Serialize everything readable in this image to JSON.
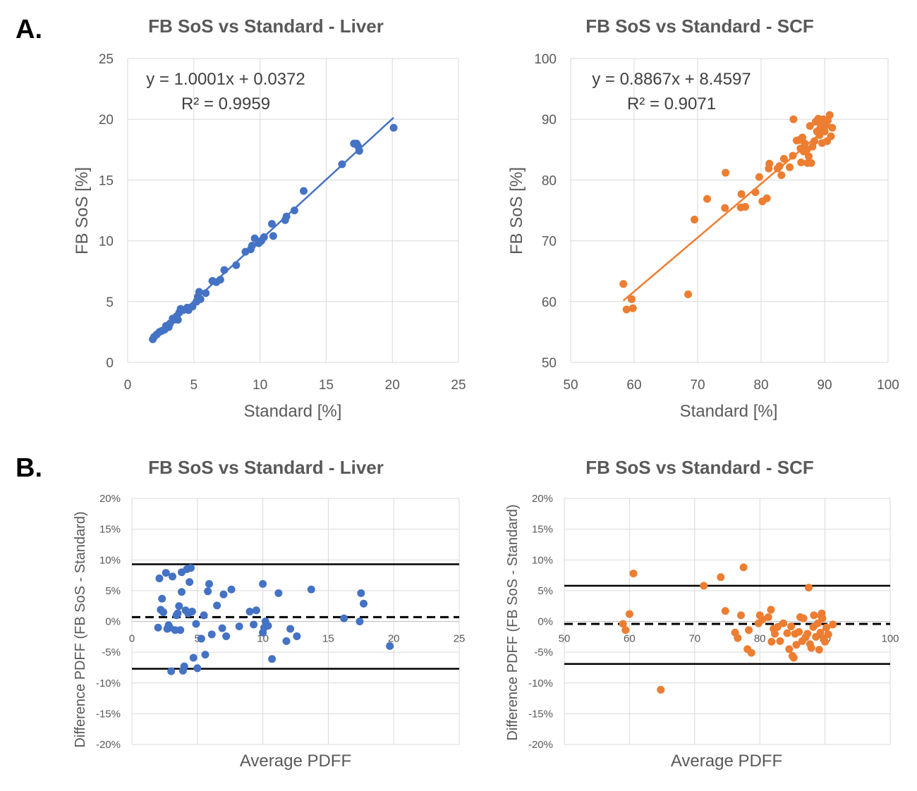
{
  "labels": {
    "panel_a": "A.",
    "panel_b": "B."
  },
  "chart_data": [
    {
      "id": "a-liver",
      "type": "scatter",
      "title": "FB SoS vs Standard - Liver",
      "xlabel": "Standard [%]",
      "ylabel": "FB SoS [%]",
      "xlim": [
        0,
        25
      ],
      "ylim": [
        0,
        25
      ],
      "xticks": [
        "0",
        "5",
        "10",
        "15",
        "20",
        "25"
      ],
      "yticks": [
        "0",
        "5",
        "10",
        "15",
        "20",
        "25"
      ],
      "color": "#4472c4",
      "equation": "y = 1.0001x + 0.0372",
      "r2": "R² = 0.9959",
      "trendline": {
        "x": [
          1.9,
          20.1
        ],
        "slope": 1.0001,
        "intercept": 0.0372
      },
      "points": [
        [
          1.9,
          1.9
        ],
        [
          2.0,
          2.1
        ],
        [
          2.2,
          2.3
        ],
        [
          2.4,
          2.5
        ],
        [
          2.6,
          2.6
        ],
        [
          2.8,
          2.7
        ],
        [
          2.9,
          3.0
        ],
        [
          3.1,
          2.9
        ],
        [
          3.2,
          3.2
        ],
        [
          3.4,
          3.6
        ],
        [
          3.5,
          3.5
        ],
        [
          3.7,
          3.8
        ],
        [
          3.8,
          3.5
        ],
        [
          3.9,
          4.1
        ],
        [
          4.0,
          4.4
        ],
        [
          4.2,
          4.3
        ],
        [
          4.5,
          4.5
        ],
        [
          4.6,
          4.3
        ],
        [
          4.9,
          4.6
        ],
        [
          5.2,
          5.0
        ],
        [
          5.3,
          5.4
        ],
        [
          5.4,
          5.8
        ],
        [
          5.5,
          5.2
        ],
        [
          5.9,
          5.7
        ],
        [
          6.4,
          6.7
        ],
        [
          6.7,
          6.6
        ],
        [
          7.0,
          6.8
        ],
        [
          7.3,
          7.6
        ],
        [
          8.2,
          8.0
        ],
        [
          8.9,
          9.1
        ],
        [
          9.3,
          9.3
        ],
        [
          9.4,
          9.6
        ],
        [
          9.6,
          10.2
        ],
        [
          9.9,
          9.8
        ],
        [
          10.1,
          10.0
        ],
        [
          10.3,
          10.3
        ],
        [
          10.9,
          11.4
        ],
        [
          11.0,
          10.4
        ],
        [
          11.9,
          11.7
        ],
        [
          12.0,
          12.0
        ],
        [
          12.6,
          12.5
        ],
        [
          13.3,
          14.1
        ],
        [
          16.2,
          16.3
        ],
        [
          17.1,
          18.0
        ],
        [
          17.3,
          18.0
        ],
        [
          17.4,
          17.8
        ],
        [
          17.5,
          17.4
        ],
        [
          20.1,
          19.3
        ]
      ]
    },
    {
      "id": "a-scf",
      "type": "scatter",
      "title": "FB SoS vs Standard - SCF",
      "xlabel": "Standard [%]",
      "ylabel": "FB SoS [%]",
      "xlim": [
        50,
        100
      ],
      "ylim": [
        50,
        100
      ],
      "xticks": [
        "50",
        "60",
        "70",
        "80",
        "90",
        "100"
      ],
      "yticks": [
        "50",
        "60",
        "70",
        "80",
        "90",
        "100"
      ],
      "color": "#ed7d31",
      "equation": "y = 0.8867x + 8.4597",
      "r2": "R² = 0.9071",
      "trendline": {
        "x": [
          58.3,
          91.0
        ],
        "slope": 0.8867,
        "intercept": 8.4597
      },
      "points": [
        [
          58.3,
          62.9
        ],
        [
          58.8,
          58.7
        ],
        [
          59.6,
          60.4
        ],
        [
          59.8,
          58.9
        ],
        [
          68.5,
          61.2
        ],
        [
          69.5,
          73.5
        ],
        [
          71.5,
          76.9
        ],
        [
          74.3,
          75.4
        ],
        [
          74.4,
          81.2
        ],
        [
          76.8,
          75.5
        ],
        [
          76.9,
          77.7
        ],
        [
          77.5,
          75.6
        ],
        [
          79.1,
          78.0
        ],
        [
          79.7,
          80.5
        ],
        [
          80.2,
          76.5
        ],
        [
          80.9,
          77.0
        ],
        [
          81.2,
          81.9
        ],
        [
          81.3,
          82.7
        ],
        [
          82.6,
          81.9
        ],
        [
          82.9,
          82.3
        ],
        [
          83.2,
          80.8
        ],
        [
          83.6,
          83.5
        ],
        [
          84.5,
          82.1
        ],
        [
          85.0,
          84.0
        ],
        [
          85.1,
          90.0
        ],
        [
          85.6,
          86.5
        ],
        [
          86.0,
          86.6
        ],
        [
          86.2,
          85.2
        ],
        [
          86.3,
          82.9
        ],
        [
          86.5,
          87.0
        ],
        [
          86.7,
          84.7
        ],
        [
          86.9,
          86.0
        ],
        [
          87.2,
          85.0
        ],
        [
          87.3,
          82.8
        ],
        [
          87.5,
          83.9
        ],
        [
          87.7,
          88.9
        ],
        [
          87.9,
          82.8
        ],
        [
          88.1,
          85.5
        ],
        [
          88.4,
          86.4
        ],
        [
          88.6,
          89.6
        ],
        [
          88.8,
          88.0
        ],
        [
          89.0,
          90.1
        ],
        [
          89.2,
          87.4
        ],
        [
          89.3,
          88.5
        ],
        [
          89.5,
          89.0
        ],
        [
          89.6,
          86.1
        ],
        [
          89.8,
          90.0
        ],
        [
          90.0,
          88.0
        ],
        [
          90.2,
          89.0
        ],
        [
          90.5,
          89.8
        ],
        [
          90.8,
          90.7
        ],
        [
          91.0,
          87.2
        ],
        [
          91.2,
          88.6
        ],
        [
          90.4,
          86.4
        ]
      ]
    },
    {
      "id": "b-liver",
      "type": "scatter",
      "title": "FB SoS vs Standard - Liver",
      "xlabel": "Average PDFF",
      "ylabel": "Difference PDFF (FB SoS - Standard)",
      "xlim": [
        0,
        25
      ],
      "ylim": [
        -20,
        20
      ],
      "xticks": [
        "0",
        "5",
        "10",
        "15",
        "20",
        "25"
      ],
      "yticks": [
        "-20%",
        "-15%",
        "-10%",
        "-5%",
        "0%",
        "5%",
        "10%",
        "15%",
        "20%"
      ],
      "color": "#4472c4",
      "lines": {
        "upper": 9.3,
        "mean": 0.7,
        "lower": -7.7
      },
      "points": [
        [
          2.0,
          -1.0
        ],
        [
          2.1,
          7.0
        ],
        [
          2.2,
          1.9
        ],
        [
          2.3,
          3.7
        ],
        [
          2.4,
          1.5
        ],
        [
          2.6,
          7.9
        ],
        [
          2.7,
          -1.2
        ],
        [
          2.8,
          -0.6
        ],
        [
          2.9,
          -1.0
        ],
        [
          3.0,
          -8.1
        ],
        [
          3.1,
          7.3
        ],
        [
          3.3,
          -1.4
        ],
        [
          3.4,
          1.0
        ],
        [
          3.5,
          1.3
        ],
        [
          3.6,
          2.5
        ],
        [
          3.7,
          -1.4
        ],
        [
          3.8,
          4.8
        ],
        [
          3.8,
          8.0
        ],
        [
          3.9,
          -8.0
        ],
        [
          4.0,
          -7.3
        ],
        [
          4.1,
          1.8
        ],
        [
          4.2,
          8.5
        ],
        [
          4.3,
          1.3
        ],
        [
          4.4,
          6.4
        ],
        [
          4.5,
          8.7
        ],
        [
          4.6,
          1.6
        ],
        [
          4.7,
          -5.9
        ],
        [
          4.9,
          -0.4
        ],
        [
          5.0,
          -7.6
        ],
        [
          5.3,
          -2.8
        ],
        [
          5.5,
          1.0
        ],
        [
          5.6,
          -5.4
        ],
        [
          5.8,
          4.9
        ],
        [
          5.9,
          6.1
        ],
        [
          6.1,
          -2.1
        ],
        [
          6.5,
          2.6
        ],
        [
          6.9,
          -1.1
        ],
        [
          7.0,
          4.4
        ],
        [
          7.2,
          -2.4
        ],
        [
          7.6,
          5.2
        ],
        [
          8.2,
          -0.8
        ],
        [
          9.0,
          1.6
        ],
        [
          9.3,
          -0.5
        ],
        [
          9.5,
          1.8
        ],
        [
          10.0,
          -1.8
        ],
        [
          10.0,
          6.1
        ],
        [
          10.1,
          -1.0
        ],
        [
          10.2,
          0.0
        ],
        [
          10.4,
          -0.7
        ],
        [
          10.7,
          -6.1
        ],
        [
          11.2,
          4.6
        ],
        [
          11.8,
          -3.2
        ],
        [
          12.1,
          -1.2
        ],
        [
          12.6,
          -2.4
        ],
        [
          13.7,
          5.2
        ],
        [
          16.2,
          0.5
        ],
        [
          17.4,
          0.0
        ],
        [
          17.5,
          4.6
        ],
        [
          17.7,
          2.9
        ],
        [
          19.7,
          -4.0
        ]
      ]
    },
    {
      "id": "b-scf",
      "type": "scatter",
      "title": "FB SoS vs Standard - SCF",
      "xlabel": "Average PDFF",
      "ylabel": "Difference PDFF (FB SoS - Standard)",
      "xlim": [
        50,
        100
      ],
      "ylim": [
        -20,
        20
      ],
      "xticks": [
        "50",
        "60",
        "70",
        "80",
        "90",
        "100"
      ],
      "yticks": [
        "-20%",
        "-15%",
        "-10%",
        "-5%",
        "0%",
        "5%",
        "10%",
        "15%",
        "20%"
      ],
      "color": "#ed7d31",
      "lines": {
        "upper": 5.8,
        "mean": -0.4,
        "lower": -6.9
      },
      "points": [
        [
          59.0,
          -0.4
        ],
        [
          59.4,
          -1.4
        ],
        [
          60.0,
          1.2
        ],
        [
          60.6,
          7.8
        ],
        [
          64.8,
          -11.1
        ],
        [
          71.4,
          5.8
        ],
        [
          74.0,
          7.2
        ],
        [
          74.7,
          1.7
        ],
        [
          76.2,
          -1.8
        ],
        [
          76.6,
          -2.7
        ],
        [
          77.1,
          1.0
        ],
        [
          77.5,
          8.8
        ],
        [
          78.1,
          -4.5
        ],
        [
          78.3,
          -1.4
        ],
        [
          78.7,
          -5.1
        ],
        [
          79.8,
          -0.3
        ],
        [
          80.0,
          1.0
        ],
        [
          80.4,
          0.3
        ],
        [
          81.3,
          0.7
        ],
        [
          81.7,
          1.9
        ],
        [
          81.8,
          -3.3
        ],
        [
          82.1,
          -1.2
        ],
        [
          82.3,
          -2.0
        ],
        [
          82.7,
          -0.9
        ],
        [
          83.1,
          -3.2
        ],
        [
          83.6,
          -0.3
        ],
        [
          84.2,
          -1.9
        ],
        [
          84.5,
          -4.5
        ],
        [
          84.8,
          -0.8
        ],
        [
          85.0,
          -5.6
        ],
        [
          85.2,
          -5.9
        ],
        [
          85.4,
          -2.0
        ],
        [
          85.6,
          -3.8
        ],
        [
          86.0,
          -1.7
        ],
        [
          86.2,
          0.7
        ],
        [
          86.5,
          -3.2
        ],
        [
          86.7,
          0.5
        ],
        [
          87.0,
          -2.6
        ],
        [
          87.3,
          -2.0
        ],
        [
          87.5,
          5.5
        ],
        [
          87.7,
          -3.7
        ],
        [
          87.9,
          -4.3
        ],
        [
          88.2,
          -0.9
        ],
        [
          88.3,
          1.0
        ],
        [
          88.6,
          -2.5
        ],
        [
          88.9,
          -0.3
        ],
        [
          89.1,
          -4.6
        ],
        [
          89.3,
          -1.8
        ],
        [
          89.5,
          1.3
        ],
        [
          89.6,
          0.5
        ],
        [
          89.8,
          -2.8
        ],
        [
          90.0,
          -3.3
        ],
        [
          90.2,
          -1.0
        ],
        [
          90.5,
          -2.1
        ],
        [
          91.2,
          -0.5
        ],
        [
          89.4,
          0.9
        ]
      ]
    }
  ]
}
